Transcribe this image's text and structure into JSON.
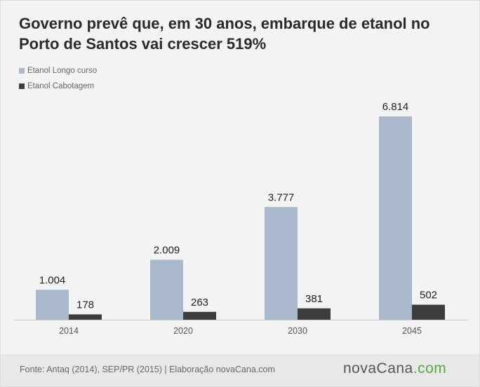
{
  "title": "Governo prevê que, em 30 anos, embarque de etanol no Porto de Santos vai crescer 519%",
  "legend": [
    {
      "label": "Etanol Longo curso",
      "color": "#a9b9cb"
    },
    {
      "label": "Etanol Cabotagem",
      "color": "#3d3d3d"
    }
  ],
  "chart_data": {
    "type": "bar",
    "categories": [
      "2014",
      "2020",
      "2030",
      "2045"
    ],
    "series": [
      {
        "name": "Etanol Longo curso",
        "values": [
          1004,
          2009,
          3777,
          6814
        ],
        "labels": [
          "1.004",
          "2.009",
          "3.777",
          "6.814"
        ],
        "color": "#a9b9cb"
      },
      {
        "name": "Etanol Cabotagem",
        "values": [
          178,
          263,
          381,
          502
        ],
        "labels": [
          "178",
          "263",
          "381",
          "502"
        ],
        "color": "#3d3d3d"
      }
    ],
    "ylim": [
      0,
      7000
    ],
    "grid": false,
    "legend_position": "top-left"
  },
  "footer": {
    "source": "Fonte: Antaq (2014), SEP/PR (2015) | Elaboração novaCana.com",
    "brand_main": "novaCana",
    "brand_suffix": ".com"
  }
}
